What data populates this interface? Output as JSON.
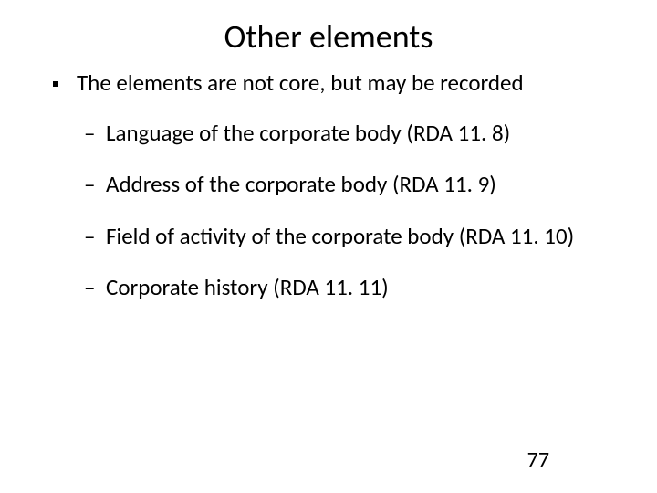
{
  "title": "Other elements",
  "bullet": "The elements are not core, but may be recorded",
  "subitems": [
    "Language of the corporate body (RDA 11. 8)",
    "Address of the corporate body (RDA 11. 9)",
    "Field of activity of the corporate body (RDA 11. 10)",
    "Corporate history (RDA 11. 11)"
  ],
  "dash": "–",
  "page_number": "77",
  "colors": {
    "background": "#ffffff",
    "text": "#000000"
  },
  "typography": {
    "title_fontsize_pt": 28,
    "body_fontsize_pt": 19,
    "font_family": "Calibri"
  }
}
